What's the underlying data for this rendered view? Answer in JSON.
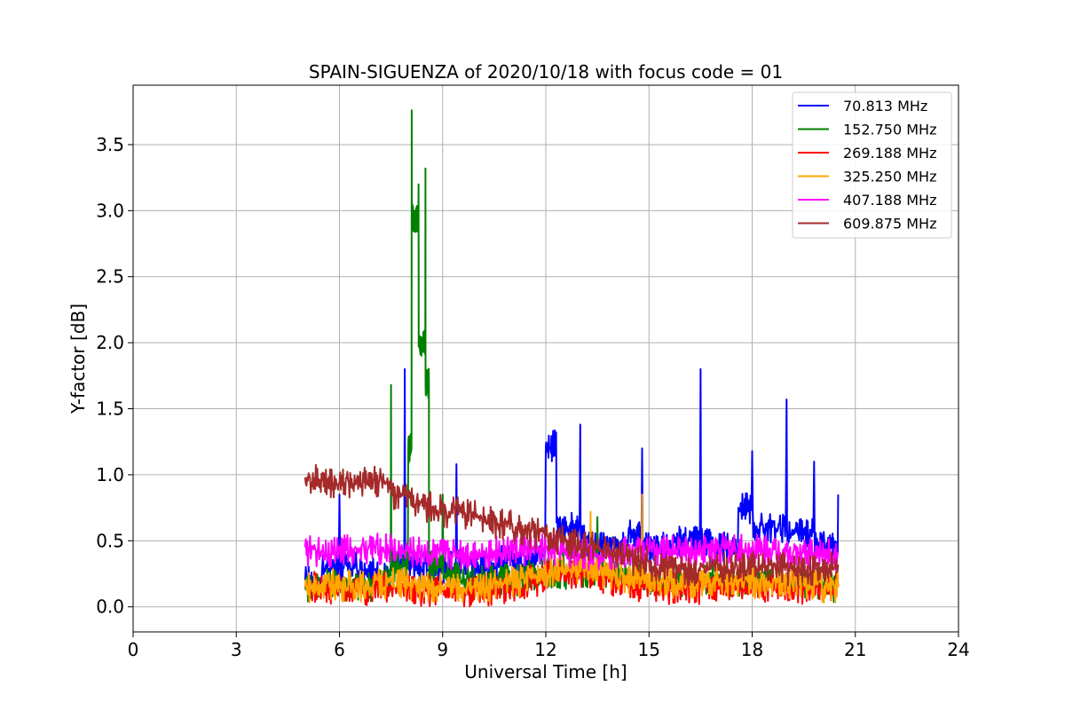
{
  "chart_data": {
    "type": "line",
    "title": "SPAIN-SIGUENZA of 2020/10/18 with focus code = 01",
    "xlabel": "Universal Time [h]",
    "ylabel": "Y-factor [dB]",
    "xlim": [
      0,
      24
    ],
    "ylim": [
      -0.19,
      3.95
    ],
    "xticks": [
      0,
      3,
      6,
      9,
      12,
      15,
      18,
      21,
      24
    ],
    "xtick_labels": [
      "0",
      "3",
      "6",
      "9",
      "12",
      "15",
      "18",
      "21",
      "24"
    ],
    "yticks": [
      0.0,
      0.5,
      1.0,
      1.5,
      2.0,
      2.5,
      3.0,
      3.5
    ],
    "ytick_labels": [
      "0.0",
      "0.5",
      "1.0",
      "1.5",
      "2.0",
      "2.5",
      "3.0",
      "3.5"
    ],
    "grid": true,
    "legend_position": "top-right",
    "series": [
      {
        "name": " 70.813 MHz",
        "color": "#0000ff",
        "x": [
          5.0,
          5.5,
          6.0,
          6.5,
          7.0,
          7.5,
          7.9,
          8.2,
          8.5,
          9.0,
          9.4,
          9.8,
          10.2,
          10.6,
          11.0,
          11.5,
          12.0,
          12.3,
          12.6,
          13.0,
          13.3,
          13.6,
          14.0,
          14.4,
          14.8,
          15.2,
          15.6,
          16.0,
          16.5,
          16.8,
          17.2,
          17.6,
          18.0,
          18.5,
          19.0,
          19.4,
          19.8,
          20.2,
          20.5
        ],
        "y": [
          0.2,
          0.3,
          0.85,
          0.3,
          0.25,
          0.35,
          1.8,
          0.3,
          0.35,
          0.3,
          1.08,
          0.35,
          0.3,
          0.4,
          0.35,
          0.4,
          1.22,
          1.32,
          0.6,
          1.38,
          0.5,
          0.45,
          0.5,
          0.55,
          1.2,
          0.45,
          0.5,
          0.5,
          1.8,
          0.5,
          0.45,
          0.75,
          1.18,
          0.6,
          1.57,
          0.55,
          1.1,
          0.45,
          0.85
        ]
      },
      {
        "name": "152.750 MHz",
        "color": "#008000",
        "x": [
          5.0,
          5.5,
          6.0,
          6.5,
          7.0,
          7.3,
          7.5,
          7.7,
          8.0,
          8.1,
          8.2,
          8.3,
          8.4,
          8.5,
          8.6,
          8.7,
          9.0,
          9.5,
          10.0,
          10.5,
          11.0,
          11.5,
          12.0,
          12.5,
          13.0,
          13.5,
          14.0,
          14.5,
          15.0,
          15.5,
          16.0,
          16.5,
          17.0,
          17.5,
          18.0,
          18.5,
          19.0,
          19.5,
          20.0,
          20.5
        ],
        "y": [
          0.15,
          0.18,
          0.17,
          0.16,
          0.18,
          0.2,
          1.68,
          0.3,
          1.2,
          3.76,
          2.95,
          3.2,
          2.0,
          3.32,
          1.7,
          0.3,
          0.85,
          0.25,
          0.2,
          0.22,
          0.2,
          0.3,
          0.25,
          0.55,
          0.25,
          0.68,
          0.25,
          0.22,
          0.2,
          0.18,
          0.2,
          0.2,
          0.22,
          0.2,
          0.2,
          0.2,
          0.2,
          0.18,
          0.2,
          0.15
        ]
      },
      {
        "name": "269.188 MHz",
        "color": "#ff0000",
        "x": [
          5.0,
          5.5,
          6.0,
          6.5,
          7.0,
          7.5,
          8.0,
          8.5,
          9.0,
          9.5,
          10.0,
          10.5,
          11.0,
          11.5,
          12.0,
          12.5,
          13.0,
          13.5,
          14.0,
          14.5,
          15.0,
          15.5,
          16.0,
          16.5,
          17.0,
          17.5,
          18.0,
          18.5,
          19.0,
          19.5,
          20.0,
          20.5
        ],
        "y": [
          0.15,
          0.15,
          0.14,
          0.13,
          0.15,
          0.16,
          0.14,
          0.12,
          0.12,
          0.11,
          0.12,
          0.14,
          0.16,
          0.2,
          0.25,
          0.26,
          0.25,
          0.24,
          0.2,
          0.18,
          0.16,
          0.15,
          0.14,
          0.15,
          0.15,
          0.16,
          0.16,
          0.15,
          0.14,
          0.15,
          0.16,
          0.15
        ]
      },
      {
        "name": "325.250 MHz",
        "color": "#ffa500",
        "x": [
          5.0,
          5.5,
          6.0,
          6.5,
          7.0,
          7.5,
          8.0,
          8.5,
          9.0,
          9.5,
          10.0,
          10.5,
          11.0,
          11.5,
          12.0,
          12.5,
          13.0,
          13.3,
          13.6,
          14.0,
          14.5,
          14.8,
          15.2,
          15.6,
          16.0,
          16.5,
          17.0,
          17.5,
          18.0,
          18.5,
          19.0,
          19.5,
          20.0,
          20.5
        ],
        "y": [
          0.15,
          0.18,
          0.17,
          0.16,
          0.18,
          0.2,
          0.18,
          0.16,
          0.15,
          0.14,
          0.16,
          0.18,
          0.2,
          0.25,
          0.27,
          0.28,
          0.28,
          0.72,
          0.3,
          0.25,
          0.22,
          0.85,
          0.2,
          0.2,
          0.18,
          0.2,
          0.2,
          0.2,
          0.2,
          0.18,
          0.2,
          0.18,
          0.18,
          0.15
        ]
      },
      {
        "name": "407.188 MHz",
        "color": "#ff00ff",
        "x": [
          5.0,
          5.5,
          6.0,
          6.5,
          7.0,
          7.5,
          8.0,
          8.5,
          9.0,
          9.5,
          10.0,
          10.5,
          11.0,
          11.5,
          12.0,
          12.5,
          13.0,
          13.5,
          14.0,
          14.5,
          15.0,
          15.5,
          16.0,
          16.5,
          17.0,
          17.5,
          18.0,
          18.5,
          19.0,
          19.5,
          20.0,
          20.5
        ],
        "y": [
          0.45,
          0.42,
          0.43,
          0.44,
          0.45,
          0.44,
          0.42,
          0.41,
          0.4,
          0.4,
          0.41,
          0.42,
          0.43,
          0.43,
          0.44,
          0.42,
          0.4,
          0.4,
          0.41,
          0.42,
          0.43,
          0.43,
          0.42,
          0.43,
          0.44,
          0.44,
          0.43,
          0.44,
          0.42,
          0.41,
          0.4,
          0.4
        ]
      },
      {
        "name": "609.875 MHz",
        "color": "#a52a2a",
        "x": [
          5.0,
          5.5,
          6.0,
          6.5,
          7.0,
          7.5,
          8.0,
          8.5,
          9.0,
          9.5,
          10.0,
          10.5,
          11.0,
          11.5,
          12.0,
          12.5,
          13.0,
          13.5,
          14.0,
          14.5,
          15.0,
          15.5,
          16.0,
          16.5,
          17.0,
          17.5,
          18.0,
          18.5,
          19.0,
          19.5,
          20.0,
          20.5
        ],
        "y": [
          0.98,
          0.96,
          0.94,
          0.96,
          0.97,
          0.95,
          0.85,
          0.8,
          0.75,
          0.72,
          0.7,
          0.66,
          0.62,
          0.58,
          0.56,
          0.52,
          0.48,
          0.45,
          0.42,
          0.4,
          0.35,
          0.3,
          0.28,
          0.33,
          0.32,
          0.3,
          0.3,
          0.32,
          0.3,
          0.28,
          0.3,
          0.32
        ]
      }
    ]
  }
}
